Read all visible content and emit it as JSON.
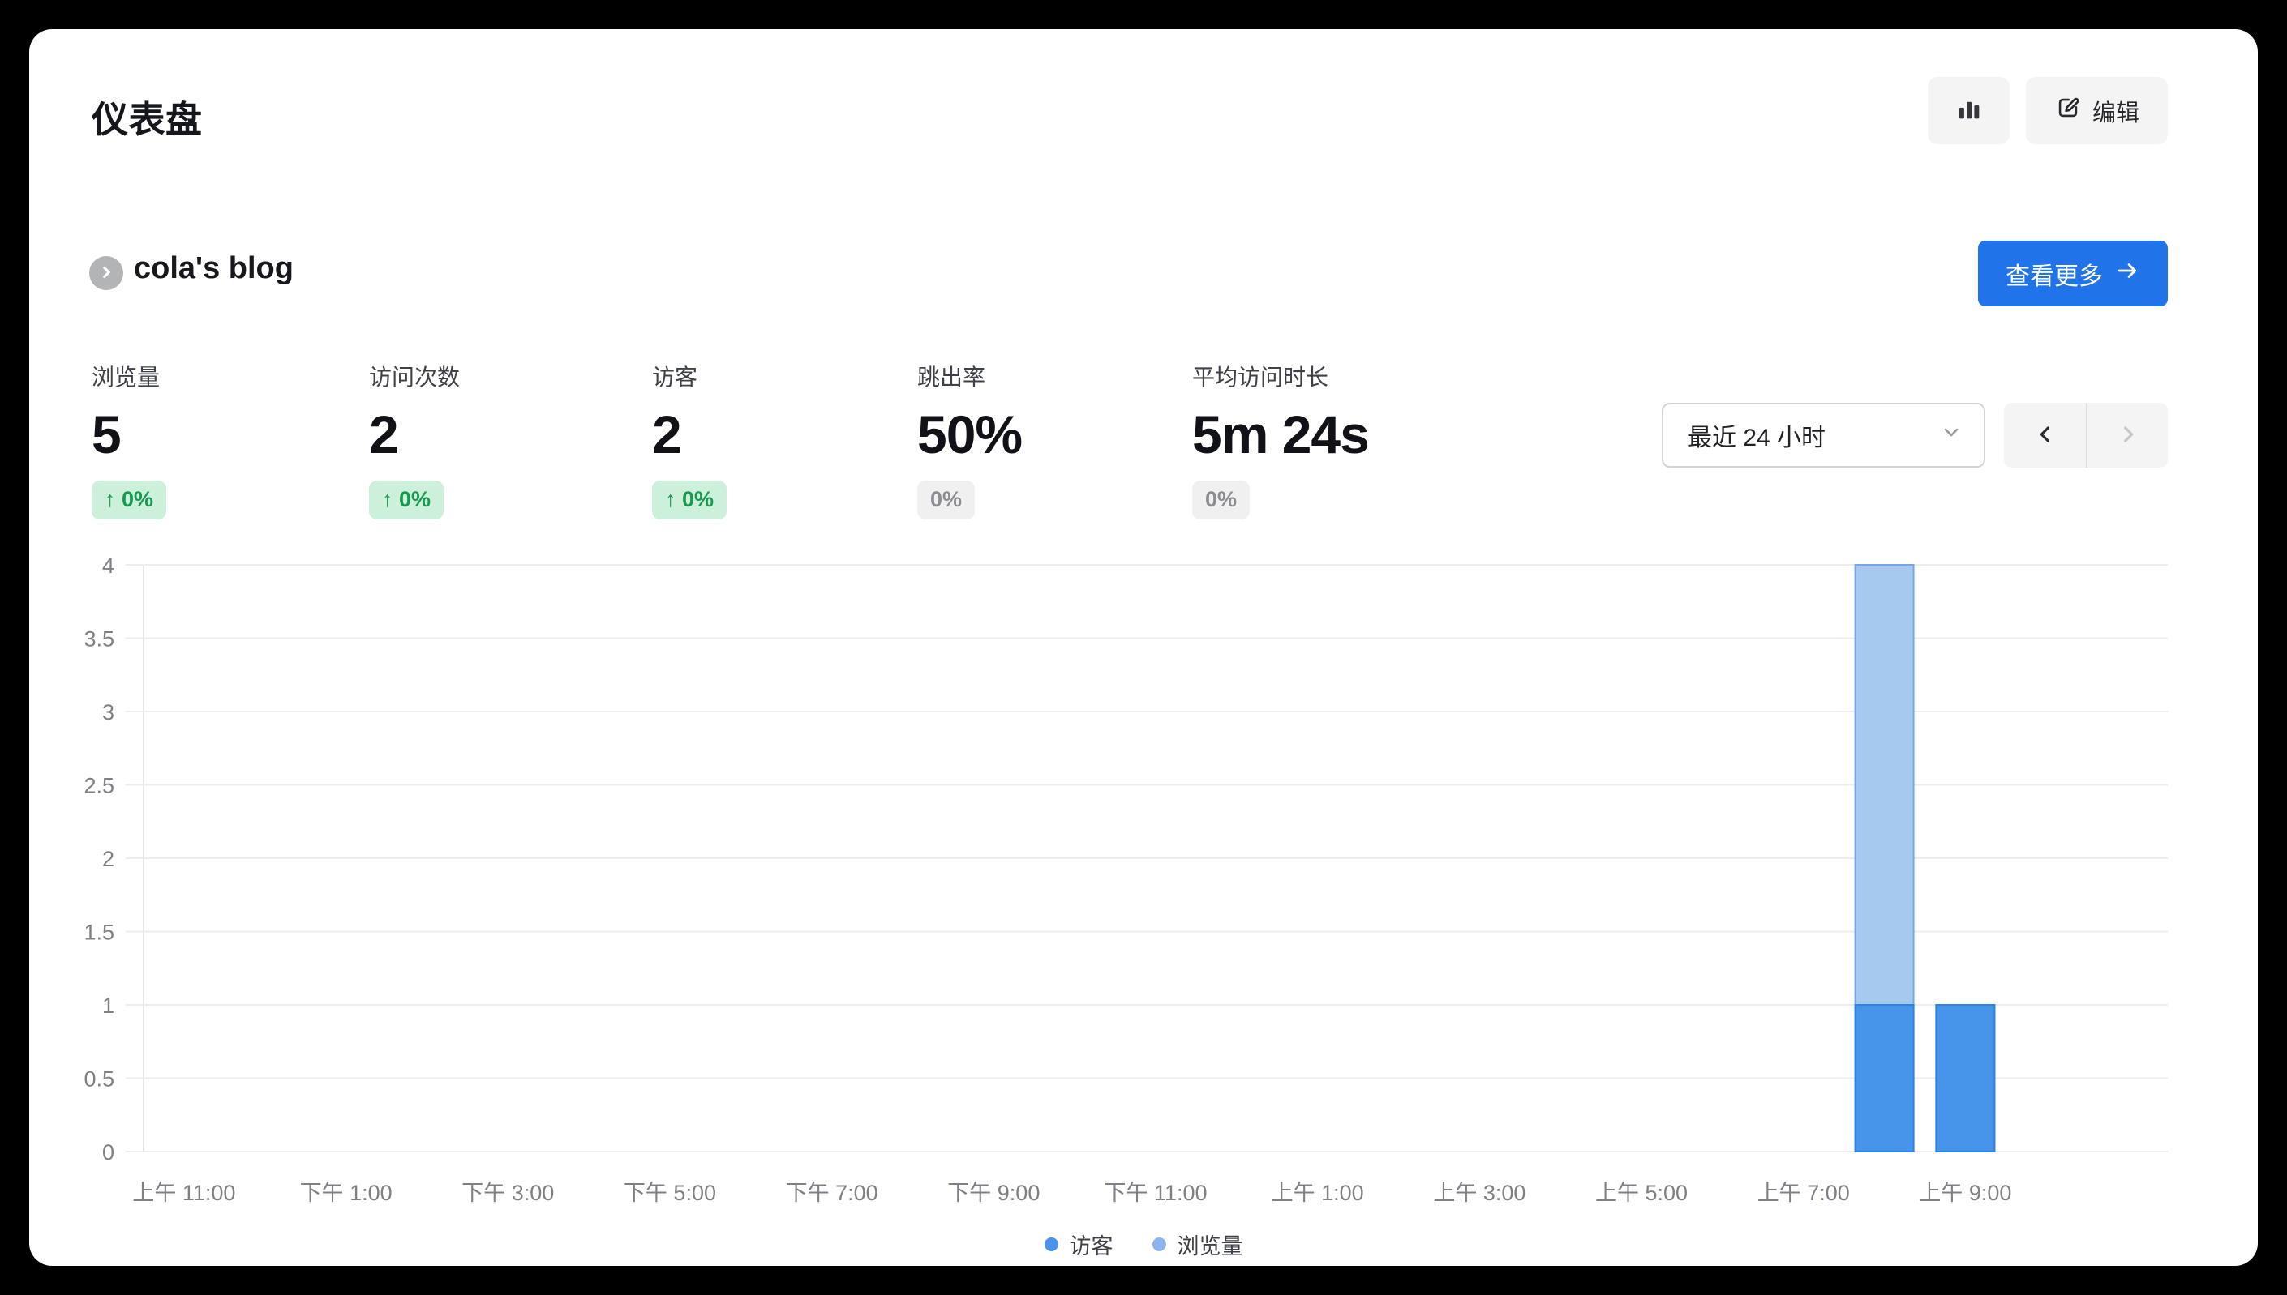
{
  "page": {
    "title": "仪表盘"
  },
  "header": {
    "chart_toggle_button": {
      "icon": "bar-chart-icon"
    },
    "edit_button": {
      "label": "编辑",
      "icon": "pencil-square-icon"
    }
  },
  "website": {
    "name": "cola's blog",
    "view_more_label": "查看更多"
  },
  "stats": [
    {
      "label": "浏览量",
      "value": "5",
      "change": "0%",
      "direction": "up",
      "positive": true
    },
    {
      "label": "访问次数",
      "value": "2",
      "change": "0%",
      "direction": "up",
      "positive": true
    },
    {
      "label": "访客",
      "value": "2",
      "change": "0%",
      "direction": "up",
      "positive": true
    },
    {
      "label": "跳出率",
      "value": "50%",
      "change": "0%",
      "direction": "none",
      "positive": false
    },
    {
      "label": "平均访问时长",
      "value": "5m 24s",
      "change": "0%",
      "direction": "none",
      "positive": false
    }
  ],
  "controls": {
    "date_range_value": "最近 24 小时",
    "prev_enabled": true,
    "next_enabled": false
  },
  "chart_data": {
    "type": "bar",
    "title": "",
    "num_slots": 25,
    "x_ticks": [
      {
        "pos": 0,
        "label": "上午 11:00"
      },
      {
        "pos": 2,
        "label": "下午 1:00"
      },
      {
        "pos": 4,
        "label": "下午 3:00"
      },
      {
        "pos": 6,
        "label": "下午 5:00"
      },
      {
        "pos": 8,
        "label": "下午 7:00"
      },
      {
        "pos": 10,
        "label": "下午 9:00"
      },
      {
        "pos": 12,
        "label": "下午 11:00"
      },
      {
        "pos": 14,
        "label": "上午 1:00"
      },
      {
        "pos": 16,
        "label": "上午 3:00"
      },
      {
        "pos": 18,
        "label": "上午 5:00"
      },
      {
        "pos": 20,
        "label": "上午 7:00"
      },
      {
        "pos": 22,
        "label": "上午 9:00"
      }
    ],
    "yticks": [
      0,
      0.5,
      1,
      1.5,
      2,
      2.5,
      3,
      3.5,
      4
    ],
    "ylim": [
      0,
      4
    ],
    "grid": true,
    "legend_position": "bottom",
    "series": [
      {
        "name": "浏览量",
        "fill": "#a6c9f0",
        "stroke": "#74a6e8",
        "values": [
          0,
          0,
          0,
          0,
          0,
          0,
          0,
          0,
          0,
          0,
          0,
          0,
          0,
          0,
          0,
          0,
          0,
          0,
          0,
          0,
          0,
          4,
          1,
          0,
          0
        ]
      },
      {
        "name": "访客",
        "fill": "#4795ea",
        "stroke": "#2e82e4",
        "values": [
          0,
          0,
          0,
          0,
          0,
          0,
          0,
          0,
          0,
          0,
          0,
          0,
          0,
          0,
          0,
          0,
          0,
          0,
          0,
          0,
          0,
          1,
          1,
          0,
          0
        ]
      }
    ],
    "legend": [
      {
        "label": "访客",
        "color": "#4b93ea"
      },
      {
        "label": "浏览量",
        "color": "#8db4ef"
      }
    ]
  },
  "colors": {
    "page_background": "#000000",
    "card_background": "#ffffff",
    "accent_blue": "#2173ea",
    "positive_badge_bg": "#ccf0da",
    "positive_badge_text": "#169a50",
    "neutral_badge_bg": "#f0f0f1",
    "neutral_badge_text": "#8b8d92",
    "gridline": "#ebedee",
    "axis_text": "#7e8085"
  }
}
